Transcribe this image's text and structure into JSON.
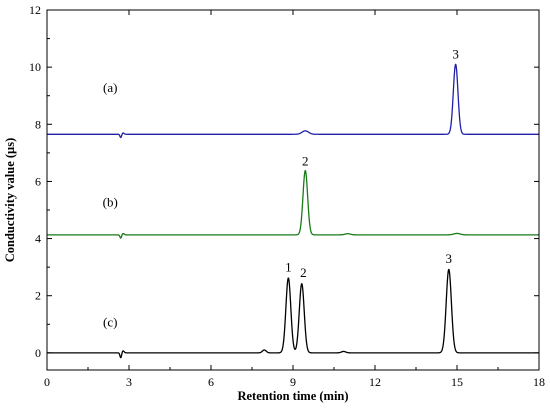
{
  "chart_data": {
    "type": "line",
    "xlabel": "Retention time (min)",
    "ylabel": "Conductivity value (µs)",
    "xlim": [
      0,
      18
    ],
    "ylim": [
      -0.6,
      12
    ],
    "xticks": [
      0,
      3,
      6,
      9,
      12,
      15,
      18
    ],
    "yticks": [
      0,
      2,
      4,
      6,
      8,
      10,
      12
    ],
    "grid": false,
    "series": [
      {
        "name": "(a)",
        "color": "#1f1fa8",
        "baseline": 7.65,
        "dip": {
          "x": 2.7,
          "depth": 0.12
        },
        "peaks": [
          {
            "x": 9.45,
            "height": 0.12,
            "width": 0.12
          },
          {
            "x": 14.95,
            "height": 2.45,
            "width": 0.085
          }
        ],
        "label_pos": {
          "x": 1.4,
          "y": 9.3
        }
      },
      {
        "name": "(b)",
        "color": "#1a7a1a",
        "baseline": 4.13,
        "dip": {
          "x": 2.7,
          "depth": 0.12
        },
        "peaks": [
          {
            "x": 9.45,
            "height": 2.25,
            "width": 0.085
          },
          {
            "x": 11.0,
            "height": 0.04,
            "width": 0.1
          },
          {
            "x": 15.0,
            "height": 0.05,
            "width": 0.12
          }
        ],
        "label_pos": {
          "x": 1.4,
          "y": 5.3
        }
      },
      {
        "name": "(c)",
        "color": "#000000",
        "baseline": 0.0,
        "dip": {
          "x": 2.7,
          "depth": 0.18
        },
        "peaks": [
          {
            "x": 7.95,
            "height": 0.1,
            "width": 0.07
          },
          {
            "x": 8.83,
            "height": 2.62,
            "width": 0.09
          },
          {
            "x": 9.32,
            "height": 2.42,
            "width": 0.09
          },
          {
            "x": 10.85,
            "height": 0.05,
            "width": 0.08
          },
          {
            "x": 14.7,
            "height": 2.92,
            "width": 0.095
          }
        ],
        "label_pos": {
          "x": 1.4,
          "y": 1.1
        }
      }
    ],
    "annotations": [
      {
        "text": "3",
        "x": 14.95,
        "y": 10.3
      },
      {
        "text": "2",
        "x": 9.45,
        "y": 6.55
      },
      {
        "text": "1",
        "x": 8.83,
        "y": 2.85
      },
      {
        "text": "2",
        "x": 9.38,
        "y": 2.65
      },
      {
        "text": "3",
        "x": 14.7,
        "y": 3.15
      }
    ]
  }
}
